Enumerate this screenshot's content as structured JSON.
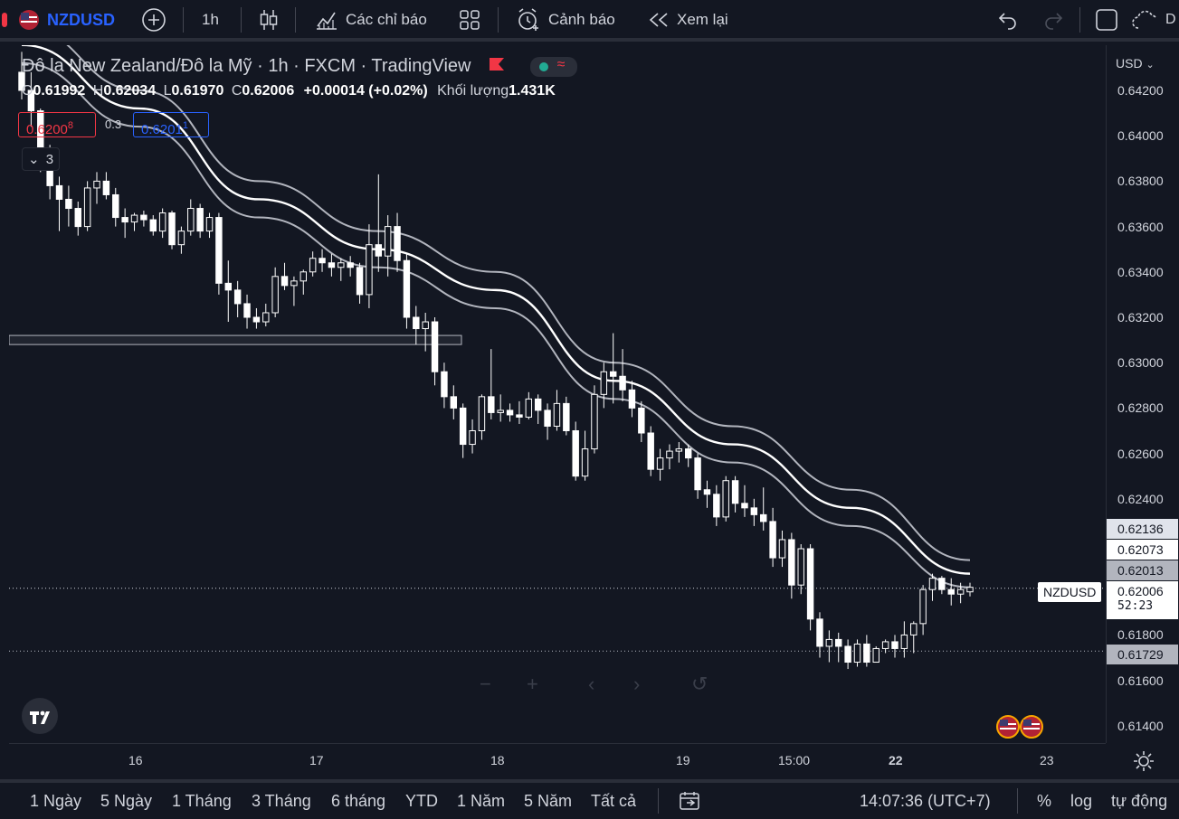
{
  "toolbar": {
    "symbol": "NZDUSD",
    "interval": "1h",
    "indicators_label": "Các chỉ báo",
    "alert_label": "Cảnh báo",
    "replay_label": "Xem lại",
    "right_cut_label": "D"
  },
  "legend": {
    "title": "Đô la New Zealand/Đô la Mỹ · 1h · FXCM · TradingView",
    "o_label": "O",
    "o_value": "0.61992",
    "h_label": "H",
    "h_value": "0.62034",
    "l_label": "L",
    "l_value": "0.61970",
    "c_label": "C",
    "c_value": "0.62006",
    "change": "+0.00014 (+0.02%)",
    "volume_label": "Khối lượng",
    "volume_value": "1.431K",
    "sell_price": "0.6200",
    "sell_sup": "8",
    "spread": "0.3",
    "buy_price": "0.6201",
    "buy_sup": "1",
    "indicators_count": "3"
  },
  "price_axis": {
    "currency": "USD",
    "labels": [
      "0.64200",
      "0.64000",
      "0.63800",
      "0.63600",
      "0.63400",
      "0.63200",
      "0.63000",
      "0.62800",
      "0.62600",
      "0.62400",
      "0.61800",
      "0.61600",
      "0.61400"
    ],
    "tags": {
      "upper_band": "0.62136",
      "middle_band": "0.62073",
      "lower_band": "0.62013",
      "last_price": "0.62006",
      "countdown": "52:23",
      "low_line": "0.61729",
      "symbol_tag": "NZDUSD"
    }
  },
  "time_axis": {
    "labels": [
      "16",
      "17",
      "18",
      "19",
      "15:00",
      "22",
      "23"
    ]
  },
  "bottom_bar": {
    "ranges": [
      "1 Ngày",
      "5 Ngày",
      "1 Tháng",
      "3 Tháng",
      "6 tháng",
      "YTD",
      "1 Năm",
      "5 Năm",
      "Tất cả"
    ],
    "clock": "14:07:36 (UTC+7)",
    "percent": "%",
    "log": "log",
    "auto": "tự động"
  },
  "colors": {
    "background": "#131722",
    "symbol_blue": "#2962ff",
    "sell_red": "#f23645",
    "candle": "#ffffff",
    "band_outer": "#b2b5be",
    "band_middle": "#ffffff"
  },
  "chart_data": {
    "type": "candlestick",
    "symbol": "NZDUSD",
    "interval": "1h",
    "ylim": [
      0.6133,
      0.6437
    ],
    "x_labels": [
      "16",
      "17",
      "18",
      "19",
      "15:00",
      "22",
      "23"
    ],
    "candles": [
      [
        0.6428,
        0.6437,
        0.6416,
        0.642
      ],
      [
        0.642,
        0.6428,
        0.6404,
        0.6411
      ],
      [
        0.6411,
        0.6412,
        0.6384,
        0.6388
      ],
      [
        0.6388,
        0.6396,
        0.6372,
        0.6378
      ],
      [
        0.6378,
        0.6382,
        0.6358,
        0.6372
      ],
      [
        0.6372,
        0.6378,
        0.636,
        0.6368
      ],
      [
        0.6368,
        0.6371,
        0.6356,
        0.636
      ],
      [
        0.636,
        0.638,
        0.6358,
        0.6377
      ],
      [
        0.6377,
        0.6384,
        0.637,
        0.638
      ],
      [
        0.638,
        0.6384,
        0.6372,
        0.6374
      ],
      [
        0.6374,
        0.6377,
        0.636,
        0.6364
      ],
      [
        0.6364,
        0.6368,
        0.6355,
        0.6362
      ],
      [
        0.6362,
        0.6366,
        0.6358,
        0.6365
      ],
      [
        0.6365,
        0.6367,
        0.636,
        0.6363
      ],
      [
        0.6363,
        0.6365,
        0.6356,
        0.6358
      ],
      [
        0.6358,
        0.6368,
        0.6355,
        0.6366
      ],
      [
        0.6366,
        0.6367,
        0.635,
        0.6352
      ],
      [
        0.6352,
        0.636,
        0.6348,
        0.6358
      ],
      [
        0.6358,
        0.6372,
        0.6356,
        0.6368
      ],
      [
        0.6368,
        0.637,
        0.6355,
        0.6358
      ],
      [
        0.6358,
        0.6366,
        0.6355,
        0.6364
      ],
      [
        0.6364,
        0.6366,
        0.633,
        0.6335
      ],
      [
        0.6335,
        0.6345,
        0.6318,
        0.6332
      ],
      [
        0.6332,
        0.6336,
        0.632,
        0.6326
      ],
      [
        0.6326,
        0.633,
        0.6315,
        0.632
      ],
      [
        0.632,
        0.6324,
        0.6315,
        0.6318
      ],
      [
        0.6318,
        0.6326,
        0.6316,
        0.6322
      ],
      [
        0.6322,
        0.6342,
        0.632,
        0.6338
      ],
      [
        0.6338,
        0.6344,
        0.6332,
        0.6334
      ],
      [
        0.6334,
        0.6338,
        0.6325,
        0.6336
      ],
      [
        0.6336,
        0.6341,
        0.633,
        0.634
      ],
      [
        0.634,
        0.6349,
        0.6338,
        0.6346
      ],
      [
        0.6346,
        0.635,
        0.634,
        0.6344
      ],
      [
        0.6344,
        0.6348,
        0.6338,
        0.6342
      ],
      [
        0.6342,
        0.6346,
        0.6336,
        0.6344
      ],
      [
        0.6344,
        0.6347,
        0.6338,
        0.6342
      ],
      [
        0.6342,
        0.6344,
        0.6326,
        0.633
      ],
      [
        0.633,
        0.6361,
        0.6324,
        0.6352
      ],
      [
        0.6352,
        0.6383,
        0.634,
        0.6347
      ],
      [
        0.6347,
        0.6365,
        0.6338,
        0.636
      ],
      [
        0.636,
        0.6366,
        0.634,
        0.6345
      ],
      [
        0.6345,
        0.6348,
        0.6315,
        0.632
      ],
      [
        0.632,
        0.6325,
        0.6308,
        0.6315
      ],
      [
        0.6315,
        0.6322,
        0.6305,
        0.6318
      ],
      [
        0.6318,
        0.632,
        0.629,
        0.6296
      ],
      [
        0.6296,
        0.63,
        0.628,
        0.6285
      ],
      [
        0.6285,
        0.629,
        0.6275,
        0.628
      ],
      [
        0.628,
        0.6282,
        0.6258,
        0.6264
      ],
      [
        0.6264,
        0.6275,
        0.626,
        0.627
      ],
      [
        0.627,
        0.6286,
        0.6266,
        0.6285
      ],
      [
        0.6285,
        0.6306,
        0.6275,
        0.6278
      ],
      [
        0.6278,
        0.6286,
        0.6274,
        0.6279
      ],
      [
        0.6279,
        0.6282,
        0.6274,
        0.6277
      ],
      [
        0.6277,
        0.6283,
        0.6273,
        0.6276
      ],
      [
        0.6276,
        0.6287,
        0.6275,
        0.6284
      ],
      [
        0.6284,
        0.6286,
        0.6273,
        0.6279
      ],
      [
        0.6279,
        0.6282,
        0.6266,
        0.6272
      ],
      [
        0.6272,
        0.6288,
        0.627,
        0.6282
      ],
      [
        0.6282,
        0.6285,
        0.6268,
        0.627
      ],
      [
        0.627,
        0.6274,
        0.6248,
        0.625
      ],
      [
        0.625,
        0.627,
        0.6248,
        0.6262
      ],
      [
        0.6262,
        0.629,
        0.626,
        0.6286
      ],
      [
        0.6286,
        0.63,
        0.628,
        0.6296
      ],
      [
        0.6296,
        0.6313,
        0.6282,
        0.6294
      ],
      [
        0.6294,
        0.6306,
        0.6283,
        0.6288
      ],
      [
        0.6288,
        0.6292,
        0.6276,
        0.628
      ],
      [
        0.628,
        0.6283,
        0.6265,
        0.6269
      ],
      [
        0.6269,
        0.6272,
        0.625,
        0.6253
      ],
      [
        0.6253,
        0.6262,
        0.6248,
        0.6258
      ],
      [
        0.6258,
        0.6264,
        0.6253,
        0.6261
      ],
      [
        0.6261,
        0.6265,
        0.6256,
        0.6262
      ],
      [
        0.6262,
        0.6264,
        0.6254,
        0.6258
      ],
      [
        0.6258,
        0.626,
        0.624,
        0.6244
      ],
      [
        0.6244,
        0.6248,
        0.6236,
        0.6242
      ],
      [
        0.6242,
        0.6246,
        0.6228,
        0.6232
      ],
      [
        0.6232,
        0.625,
        0.623,
        0.6248
      ],
      [
        0.6248,
        0.625,
        0.6234,
        0.6238
      ],
      [
        0.6238,
        0.6246,
        0.6232,
        0.6236
      ],
      [
        0.6236,
        0.624,
        0.6228,
        0.6233
      ],
      [
        0.6233,
        0.6245,
        0.6226,
        0.623
      ],
      [
        0.623,
        0.6236,
        0.621,
        0.6214
      ],
      [
        0.6214,
        0.6226,
        0.621,
        0.6222
      ],
      [
        0.6222,
        0.6225,
        0.6196,
        0.6202
      ],
      [
        0.6202,
        0.622,
        0.6198,
        0.6218
      ],
      [
        0.6218,
        0.622,
        0.6182,
        0.6187
      ],
      [
        0.6187,
        0.619,
        0.617,
        0.6175
      ],
      [
        0.6175,
        0.6182,
        0.6168,
        0.6178
      ],
      [
        0.6178,
        0.6181,
        0.6168,
        0.6175
      ],
      [
        0.6175,
        0.6178,
        0.6165,
        0.6168
      ],
      [
        0.6168,
        0.6178,
        0.6166,
        0.6176
      ],
      [
        0.6176,
        0.618,
        0.6166,
        0.6168
      ],
      [
        0.6168,
        0.6175,
        0.6168,
        0.6174
      ],
      [
        0.6174,
        0.6178,
        0.6172,
        0.6177
      ],
      [
        0.6177,
        0.618,
        0.617,
        0.6174
      ],
      [
        0.6174,
        0.6186,
        0.617,
        0.618
      ],
      [
        0.618,
        0.6186,
        0.6172,
        0.6185
      ],
      [
        0.6185,
        0.6202,
        0.618,
        0.62
      ],
      [
        0.62,
        0.6207,
        0.6195,
        0.6205
      ],
      [
        0.6205,
        0.6206,
        0.6198,
        0.62
      ],
      [
        0.62,
        0.6205,
        0.6193,
        0.6198
      ],
      [
        0.6198,
        0.6203,
        0.6194,
        0.62
      ],
      [
        0.6199,
        0.6203,
        0.6197,
        0.6201
      ]
    ],
    "bands": {
      "upper": [
        0.6448,
        0.642,
        0.638,
        0.6358,
        0.634,
        0.63,
        0.6272,
        0.6244,
        0.6213
      ],
      "middle": [
        0.644,
        0.6412,
        0.6372,
        0.635,
        0.6332,
        0.6292,
        0.6264,
        0.6236,
        0.6207
      ],
      "lower": [
        0.6432,
        0.6404,
        0.6364,
        0.6342,
        0.6324,
        0.6284,
        0.6256,
        0.6228,
        0.6201
      ]
    },
    "horizontal_levels": {
      "last_price": 0.62006,
      "low_line": 0.61729,
      "zone_top": 0.6312,
      "zone_bottom": 0.6308
    }
  }
}
